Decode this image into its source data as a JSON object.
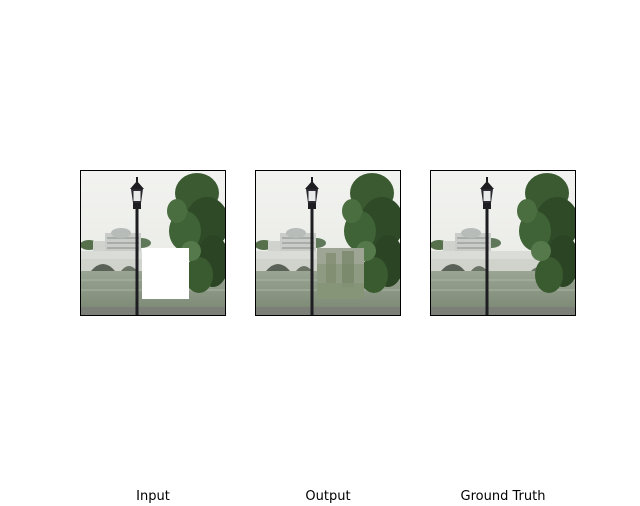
{
  "panels": [
    {
      "label": "Input",
      "variant": "masked"
    },
    {
      "label": "Output",
      "variant": "inpainted"
    },
    {
      "label": "Ground Truth",
      "variant": "original"
    }
  ],
  "colors": {
    "sky": "#eef0ec",
    "water": "#8e9a86",
    "bridge": "#d7d9d4",
    "tree": "#2f4b27",
    "lamp": "#1d1d22",
    "mask": "#ffffff",
    "blur": "#8f9a7d"
  }
}
